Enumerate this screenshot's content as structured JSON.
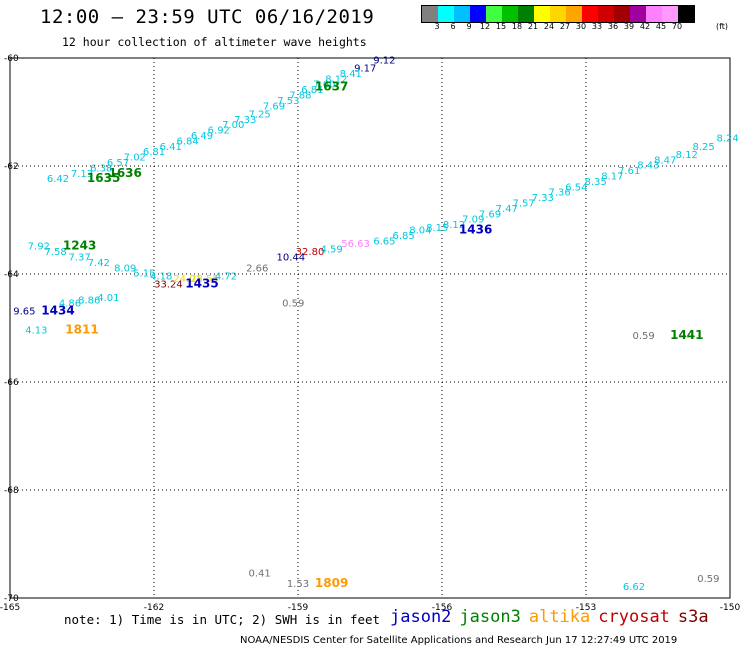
{
  "header": {
    "title": "12:00 – 23:59 UTC 06/16/2019",
    "subtitle": "12 hour collection of altimeter wave heights"
  },
  "colorbar": {
    "colors": [
      "#808080",
      "#00ffff",
      "#00bfff",
      "#0000ff",
      "#40ff40",
      "#00c000",
      "#008000",
      "#ffff00",
      "#ffd700",
      "#ffa500",
      "#ff0000",
      "#d00000",
      "#a00000",
      "#a000a0",
      "#ff80ff",
      "#ff99ff",
      "#000000"
    ],
    "labels": [
      "3",
      "6",
      "9",
      "12",
      "15",
      "18",
      "21",
      "24",
      "27",
      "30",
      "33",
      "36",
      "39",
      "42",
      "45",
      "70"
    ],
    "unit": "(ft)"
  },
  "axes": {
    "lat_ticks": [
      {
        "value": -60,
        "label": "-60"
      },
      {
        "value": -62,
        "label": "-62"
      },
      {
        "value": -64,
        "label": "-64"
      },
      {
        "value": -66,
        "label": "-66"
      },
      {
        "value": -68,
        "label": "-68"
      },
      {
        "value": -70,
        "label": "-70"
      }
    ],
    "lon_ticks": [
      {
        "value": -165,
        "label": "-165"
      },
      {
        "value": -162,
        "label": "-162"
      },
      {
        "value": -159,
        "label": "-159"
      },
      {
        "value": -156,
        "label": "-156"
      },
      {
        "value": -153,
        "label": "-153"
      },
      {
        "value": -150,
        "label": "-150"
      }
    ]
  },
  "colors": {
    "grey": "#707070",
    "cyan": "#00c8e0",
    "ltblue": "#00a0ff",
    "blue": "#0000c0",
    "navy": "#000080",
    "green": "#008000",
    "orange": "#ff9900",
    "yellow": "#e8e000",
    "red": "#c00000",
    "darkred": "#800000",
    "pink": "#ff80ff"
  },
  "map_labels": [
    {
      "text": "9.12",
      "lon": -157.2,
      "lat": -60.1,
      "color": "navy",
      "size": 10
    },
    {
      "text": "9.17",
      "lon": -157.6,
      "lat": -60.25,
      "color": "navy",
      "size": 10
    },
    {
      "text": "8.41",
      "lon": -157.9,
      "lat": -60.35,
      "color": "cyan",
      "size": 10
    },
    {
      "text": "8.12",
      "lon": -158.2,
      "lat": -60.45,
      "color": "cyan",
      "size": 10
    },
    {
      "text": "7.60",
      "lon": -158.45,
      "lat": -60.55,
      "color": "cyan",
      "size": 10
    },
    {
      "text": "6.81",
      "lon": -158.7,
      "lat": -60.65,
      "color": "cyan",
      "size": 10
    },
    {
      "text": "1637",
      "lon": -158.3,
      "lat": -60.6,
      "color": "green",
      "size": 12,
      "bold": true
    },
    {
      "text": "7.88",
      "lon": -158.95,
      "lat": -60.75,
      "color": "cyan",
      "size": 10
    },
    {
      "text": "7.53",
      "lon": -159.2,
      "lat": -60.85,
      "color": "cyan",
      "size": 10
    },
    {
      "text": "7.69",
      "lon": -159.5,
      "lat": -60.95,
      "color": "cyan",
      "size": 10
    },
    {
      "text": "7.25",
      "lon": -159.8,
      "lat": -61.1,
      "color": "cyan",
      "size": 10
    },
    {
      "text": "7.33",
      "lon": -160.1,
      "lat": -61.2,
      "color": "cyan",
      "size": 10
    },
    {
      "text": "7.00",
      "lon": -160.35,
      "lat": -61.3,
      "color": "cyan",
      "size": 10
    },
    {
      "text": "6.92",
      "lon": -160.65,
      "lat": -61.4,
      "color": "cyan",
      "size": 10
    },
    {
      "text": "6.49",
      "lon": -161.0,
      "lat": -61.5,
      "color": "cyan",
      "size": 10
    },
    {
      "text": "6.84",
      "lon": -161.3,
      "lat": -61.6,
      "color": "cyan",
      "size": 10
    },
    {
      "text": "6.41",
      "lon": -161.65,
      "lat": -61.7,
      "color": "cyan",
      "size": 10
    },
    {
      "text": "6.81",
      "lon": -162.0,
      "lat": -61.8,
      "color": "cyan",
      "size": 10
    },
    {
      "text": "7.02",
      "lon": -162.4,
      "lat": -61.9,
      "color": "cyan",
      "size": 10
    },
    {
      "text": "6.57",
      "lon": -162.75,
      "lat": -62.0,
      "color": "cyan",
      "size": 10
    },
    {
      "text": "1636",
      "lon": -162.6,
      "lat": -62.2,
      "color": "green",
      "size": 12,
      "bold": true
    },
    {
      "text": "6.38",
      "lon": -163.1,
      "lat": -62.1,
      "color": "cyan",
      "size": 10
    },
    {
      "text": "7.13",
      "lon": -163.5,
      "lat": -62.2,
      "color": "cyan",
      "size": 10
    },
    {
      "text": "1635",
      "lon": -163.05,
      "lat": -62.3,
      "color": "green",
      "size": 12,
      "bold": true
    },
    {
      "text": "6.42",
      "lon": -164.0,
      "lat": -62.3,
      "color": "cyan",
      "size": 10
    },
    {
      "text": "8.24",
      "lon": -150.05,
      "lat": -61.55,
      "color": "cyan",
      "size": 10
    },
    {
      "text": "8.25",
      "lon": -150.55,
      "lat": -61.7,
      "color": "cyan",
      "size": 10
    },
    {
      "text": "8.12",
      "lon": -150.9,
      "lat": -61.85,
      "color": "cyan",
      "size": 10
    },
    {
      "text": "8.47",
      "lon": -151.35,
      "lat": -61.95,
      "color": "cyan",
      "size": 10
    },
    {
      "text": "8.43",
      "lon": -151.7,
      "lat": -62.05,
      "color": "cyan",
      "size": 10
    },
    {
      "text": "7.61",
      "lon": -152.1,
      "lat": -62.15,
      "color": "cyan",
      "size": 10
    },
    {
      "text": "8.17",
      "lon": -152.45,
      "lat": -62.25,
      "color": "cyan",
      "size": 10
    },
    {
      "text": "8.35",
      "lon": -152.8,
      "lat": -62.35,
      "color": "cyan",
      "size": 10
    },
    {
      "text": "6.54",
      "lon": -153.2,
      "lat": -62.45,
      "color": "cyan",
      "size": 10
    },
    {
      "text": "7.36",
      "lon": -153.55,
      "lat": -62.55,
      "color": "cyan",
      "size": 10
    },
    {
      "text": "7.33",
      "lon": -153.9,
      "lat": -62.65,
      "color": "cyan",
      "size": 10
    },
    {
      "text": "7.57",
      "lon": -154.3,
      "lat": -62.75,
      "color": "cyan",
      "size": 10
    },
    {
      "text": "7.47",
      "lon": -154.65,
      "lat": -62.85,
      "color": "cyan",
      "size": 10
    },
    {
      "text": "7.69",
      "lon": -155.0,
      "lat": -62.95,
      "color": "cyan",
      "size": 10
    },
    {
      "text": "7.09",
      "lon": -155.35,
      "lat": -63.05,
      "color": "cyan",
      "size": 10
    },
    {
      "text": "8.12",
      "lon": -155.75,
      "lat": -63.15,
      "color": "cyan",
      "size": 10
    },
    {
      "text": "1436",
      "lon": -155.3,
      "lat": -63.25,
      "color": "blue",
      "size": 12,
      "bold": true
    },
    {
      "text": "8.15",
      "lon": -156.1,
      "lat": -63.2,
      "color": "cyan",
      "size": 10
    },
    {
      "text": "8.04",
      "lon": -156.45,
      "lat": -63.25,
      "color": "cyan",
      "size": 10
    },
    {
      "text": "6.85",
      "lon": -156.8,
      "lat": -63.35,
      "color": "cyan",
      "size": 10
    },
    {
      "text": "6.65",
      "lon": -157.2,
      "lat": -63.45,
      "color": "cyan",
      "size": 10
    },
    {
      "text": "56.63",
      "lon": -157.8,
      "lat": -63.5,
      "color": "pink",
      "size": 10
    },
    {
      "text": "4.59",
      "lon": -158.3,
      "lat": -63.6,
      "color": "cyan",
      "size": 10
    },
    {
      "text": "32.80",
      "lon": -158.75,
      "lat": -63.65,
      "color": "red",
      "size": 10
    },
    {
      "text": "10.44",
      "lon": -159.15,
      "lat": -63.75,
      "color": "navy",
      "size": 10
    },
    {
      "text": "7.92",
      "lon": -164.4,
      "lat": -63.55,
      "color": "cyan",
      "size": 10
    },
    {
      "text": "7.58",
      "lon": -164.05,
      "lat": -63.65,
      "color": "cyan",
      "size": 10
    },
    {
      "text": "1243",
      "lon": -163.55,
      "lat": -63.55,
      "color": "green",
      "size": 12,
      "bold": true
    },
    {
      "text": "7.37",
      "lon": -163.55,
      "lat": -63.75,
      "color": "cyan",
      "size": 10
    },
    {
      "text": "7.42",
      "lon": -163.15,
      "lat": -63.85,
      "color": "cyan",
      "size": 10
    },
    {
      "text": "8.09",
      "lon": -162.6,
      "lat": -63.95,
      "color": "cyan",
      "size": 10
    },
    {
      "text": "5.15",
      "lon": -162.2,
      "lat": -64.05,
      "color": "cyan",
      "size": 10
    },
    {
      "text": "4.18",
      "lon": -161.85,
      "lat": -64.1,
      "color": "cyan",
      "size": 10
    },
    {
      "text": "33.24",
      "lon": -161.7,
      "lat": -64.25,
      "color": "darkred",
      "size": 10
    },
    {
      "text": "24.01",
      "lon": -161.3,
      "lat": -64.15,
      "color": "yellow",
      "size": 10
    },
    {
      "text": "28.55",
      "lon": -160.95,
      "lat": -64.15,
      "color": "yellow",
      "size": 10
    },
    {
      "text": "1435",
      "lon": -161.0,
      "lat": -64.25,
      "color": "blue",
      "size": 12,
      "bold": true
    },
    {
      "text": "4.72",
      "lon": -160.5,
      "lat": -64.1,
      "color": "cyan",
      "size": 10
    },
    {
      "text": "2.66",
      "lon": -159.85,
      "lat": -63.95,
      "color": "grey",
      "size": 10
    },
    {
      "text": "4.01",
      "lon": -162.95,
      "lat": -64.5,
      "color": "cyan",
      "size": 10
    },
    {
      "text": "8.86",
      "lon": -163.35,
      "lat": -64.55,
      "color": "cyan",
      "size": 10
    },
    {
      "text": "4.86",
      "lon": -163.75,
      "lat": -64.6,
      "color": "cyan",
      "size": 10
    },
    {
      "text": "9.65",
      "lon": -164.7,
      "lat": -64.75,
      "color": "navy",
      "size": 10
    },
    {
      "text": "1434",
      "lon": -164.0,
      "lat": -64.75,
      "color": "blue",
      "size": 12,
      "bold": true
    },
    {
      "text": "4.13",
      "lon": -164.45,
      "lat": -65.1,
      "color": "cyan",
      "size": 10
    },
    {
      "text": "1811",
      "lon": -163.5,
      "lat": -65.1,
      "color": "orange",
      "size": 12,
      "bold": true
    },
    {
      "text": "0.59",
      "lon": -159.1,
      "lat": -64.6,
      "color": "grey",
      "size": 10
    },
    {
      "text": "0.59",
      "lon": -151.8,
      "lat": -65.2,
      "color": "grey",
      "size": 10
    },
    {
      "text": "1441",
      "lon": -150.9,
      "lat": -65.2,
      "color": "green",
      "size": 12,
      "bold": true
    },
    {
      "text": "0.41",
      "lon": -159.8,
      "lat": -69.6,
      "color": "grey",
      "size": 10
    },
    {
      "text": "1.53",
      "lon": -159.0,
      "lat": -69.8,
      "color": "grey",
      "size": 10
    },
    {
      "text": "1809",
      "lon": -158.3,
      "lat": -69.8,
      "color": "orange",
      "size": 12,
      "bold": true
    },
    {
      "text": "6.62",
      "lon": -152.0,
      "lat": -69.85,
      "color": "cyan",
      "size": 10
    },
    {
      "text": "0.59",
      "lon": -150.45,
      "lat": -69.7,
      "color": "grey",
      "size": 10
    }
  ],
  "footer": {
    "note": "note: 1) Time is in UTC; 2) SWH is in feet",
    "satellites": [
      {
        "name": "jason2",
        "color": "#0000c0"
      },
      {
        "name": "jason3",
        "color": "#008000"
      },
      {
        "name": "altika",
        "color": "#ff9900"
      },
      {
        "name": "cryosat",
        "color": "#c00000"
      },
      {
        "name": "s3a",
        "color": "#800000"
      }
    ],
    "credit": "NOAA/NESDIS Center for Satellite Applications and Research   Jun 17 12:27:49 UTC 2019"
  }
}
